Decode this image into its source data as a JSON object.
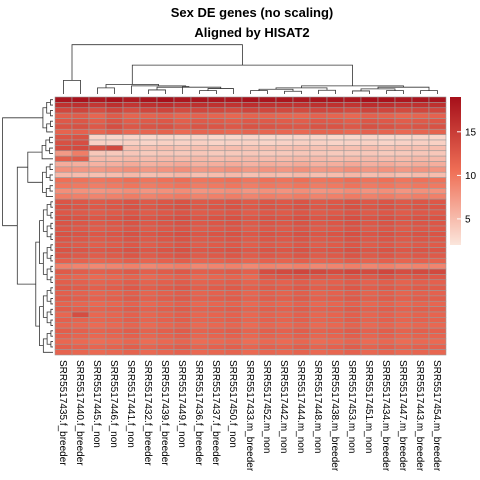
{
  "chart_data": {
    "type": "heatmap",
    "title": "Sex DE genes (no scaling)",
    "subtitle": "Aligned by HISAT2",
    "columns": [
      "SRR5517435.f_breeder",
      "SRR5517440.f_breeder",
      "SRR5517445.f_non",
      "SRR5517446.f_non",
      "SRR5517441.f_non",
      "SRR5517432.f_breeder",
      "SRR5517439.f_breeder",
      "SRR5517449.f_non",
      "SRR5517436.f_breeder",
      "SRR5517437.f_breeder",
      "SRR5517450.f_non",
      "SRR5517433.m_breeder",
      "SRR5517452.m_non",
      "SRR5517442.m_non",
      "SRR5517444.m_non",
      "SRR5517448.m_non",
      "SRR5517438.m_breeder",
      "SRR5517453.m_non",
      "SRR5517451.m_non",
      "SRR5517434.m_breeder",
      "SRR5517447.m_breeder",
      "SRR5517443.m_breeder",
      "SRR5517454.m_breeder"
    ],
    "n_rows": 48,
    "color_scale": {
      "low": "#fbe6dc",
      "mid": "#ef6f56",
      "high": "#a50f1a",
      "min": 2,
      "max": 19
    },
    "legend": {
      "ticks": [
        5,
        10,
        15
      ],
      "placement": "right"
    },
    "row_dendrogram": "left",
    "column_dendrogram": "top",
    "values": [
      [
        18.5,
        18.7,
        18.2,
        18.8,
        18.1,
        18.6,
        18.9,
        18.3,
        18.6,
        18.4,
        18.2,
        18.8,
        18.5,
        18.4,
        18.3,
        18.6,
        18.5,
        18.2,
        18.9,
        18.7,
        18.3,
        18.5,
        18.6
      ],
      [
        16.0,
        16.2,
        15.5,
        16.2,
        15.6,
        16.1,
        16.3,
        15.8,
        16.1,
        16.0,
        15.8,
        16.3,
        16.0,
        15.9,
        15.8,
        16.1,
        16.0,
        15.7,
        16.4,
        16.2,
        15.8,
        16.0,
        16.1
      ],
      [
        14.0,
        14.2,
        13.4,
        14.2,
        13.5,
        14.0,
        14.2,
        13.6,
        14.0,
        13.9,
        13.6,
        14.2,
        14.0,
        13.8,
        13.7,
        14.1,
        14.0,
        13.6,
        14.3,
        14.1,
        13.7,
        14.0,
        14.1
      ],
      [
        12.0,
        12.2,
        11.4,
        12.3,
        11.5,
        11.6,
        11.8,
        11.3,
        11.7,
        11.5,
        11.3,
        11.6,
        11.5,
        11.3,
        11.2,
        11.7,
        11.5,
        11.2,
        11.8,
        11.6,
        11.2,
        11.5,
        11.7
      ],
      [
        12.5,
        12.7,
        12.0,
        12.9,
        12.1,
        12.4,
        12.6,
        11.9,
        12.4,
        12.3,
        12.0,
        12.5,
        12.4,
        12.2,
        12.1,
        12.5,
        12.4,
        12.0,
        12.7,
        12.5,
        12.1,
        12.4,
        12.6
      ],
      [
        13.0,
        13.2,
        12.5,
        13.4,
        12.6,
        12.9,
        13.1,
        12.4,
        12.9,
        12.8,
        12.5,
        13.0,
        12.9,
        12.7,
        12.6,
        13.0,
        12.9,
        12.5,
        13.2,
        13.0,
        12.6,
        12.9,
        13.1
      ],
      [
        11.5,
        11.7,
        11.3,
        12.0,
        11.1,
        11.4,
        11.6,
        10.9,
        11.4,
        11.3,
        11.0,
        11.5,
        11.4,
        11.2,
        11.1,
        11.5,
        11.4,
        11.0,
        11.7,
        11.5,
        11.1,
        11.4,
        11.6
      ],
      [
        12.8,
        13.0,
        3.2,
        3.1,
        3.3,
        3.0,
        3.2,
        3.1,
        3.3,
        3.0,
        3.1,
        3.2,
        3.0,
        3.1,
        3.3,
        3.2,
        3.0,
        3.1,
        3.2,
        3.0,
        3.1,
        3.3,
        3.2
      ],
      [
        13.2,
        13.4,
        3.5,
        3.4,
        3.6,
        3.3,
        3.5,
        3.4,
        3.6,
        3.3,
        3.4,
        3.5,
        3.3,
        3.4,
        3.6,
        3.5,
        3.3,
        3.4,
        3.5,
        3.3,
        3.4,
        3.6,
        3.5
      ],
      [
        13.6,
        13.8,
        12.9,
        13.9,
        4.8,
        4.7,
        4.9,
        4.6,
        4.8,
        4.7,
        4.9,
        4.6,
        4.8,
        4.7,
        4.9,
        4.6,
        4.8,
        4.7,
        4.9,
        4.6,
        4.8,
        4.7,
        4.9
      ],
      [
        7.5,
        9.5,
        4.2,
        4.1,
        4.3,
        4.0,
        4.2,
        4.1,
        4.3,
        4.0,
        4.1,
        4.2,
        4.0,
        4.1,
        4.3,
        4.2,
        4.0,
        4.1,
        4.2,
        4.0,
        4.1,
        4.3,
        4.2
      ],
      [
        12.0,
        12.2,
        5.2,
        5.1,
        5.3,
        5.0,
        5.2,
        5.1,
        5.3,
        5.0,
        5.1,
        5.2,
        5.0,
        5.1,
        5.3,
        5.2,
        5.0,
        5.1,
        5.2,
        5.0,
        5.1,
        5.3,
        5.2
      ],
      [
        6.2,
        6.0,
        5.7,
        5.9,
        6.3,
        5.8,
        6.1,
        6.4,
        5.8,
        6.0,
        6.2,
        5.7,
        6.1,
        5.9,
        6.3,
        5.8,
        6.0,
        6.4,
        5.9,
        6.2,
        5.8,
        6.1,
        6.0
      ],
      [
        8.0,
        7.7,
        7.5,
        7.8,
        8.2,
        7.6,
        7.9,
        8.3,
        7.6,
        7.8,
        8.1,
        7.5,
        7.9,
        7.7,
        8.2,
        7.6,
        7.8,
        8.3,
        7.7,
        8.0,
        7.6,
        7.9,
        7.8
      ],
      [
        5.2,
        5.0,
        4.7,
        4.9,
        5.3,
        4.8,
        5.1,
        5.4,
        4.8,
        5.0,
        5.2,
        4.7,
        5.1,
        4.9,
        5.3,
        4.8,
        5.0,
        5.4,
        4.9,
        5.2,
        4.8,
        5.1,
        5.0
      ],
      [
        10.5,
        10.3,
        10.0,
        10.2,
        10.6,
        10.1,
        10.4,
        10.7,
        10.1,
        10.3,
        10.5,
        10.0,
        10.4,
        10.2,
        10.6,
        10.1,
        10.3,
        10.7,
        10.2,
        10.5,
        10.1,
        10.4,
        10.3
      ],
      [
        10.0,
        9.8,
        9.5,
        9.7,
        10.1,
        9.6,
        9.9,
        10.2,
        9.6,
        9.8,
        10.0,
        9.5,
        9.9,
        9.7,
        10.1,
        9.6,
        9.8,
        10.2,
        9.7,
        10.0,
        9.6,
        9.9,
        9.8
      ],
      [
        8.2,
        8.0,
        7.7,
        7.9,
        8.3,
        7.8,
        8.1,
        8.4,
        7.8,
        8.0,
        8.2,
        7.7,
        8.1,
        7.9,
        8.3,
        7.8,
        8.0,
        8.4,
        7.9,
        8.2,
        7.8,
        8.1,
        8.0
      ],
      [
        9.5,
        9.3,
        9.0,
        9.2,
        9.6,
        9.1,
        9.4,
        9.7,
        9.1,
        9.3,
        9.5,
        9.0,
        9.4,
        9.2,
        9.6,
        9.1,
        9.3,
        9.7,
        9.2,
        9.5,
        9.1,
        9.4,
        9.3
      ],
      [
        12.8,
        12.6,
        12.3,
        12.5,
        12.9,
        12.4,
        12.7,
        13.0,
        12.4,
        12.6,
        12.8,
        12.3,
        12.7,
        12.5,
        12.9,
        12.4,
        12.6,
        13.0,
        12.5,
        12.8,
        12.4,
        12.7,
        12.6
      ],
      [
        13.0,
        12.8,
        12.5,
        12.7,
        13.1,
        12.6,
        12.9,
        13.2,
        12.6,
        12.8,
        13.0,
        12.5,
        12.9,
        12.7,
        13.1,
        12.6,
        12.8,
        13.2,
        12.7,
        13.0,
        12.6,
        12.9,
        12.8
      ],
      [
        12.6,
        12.4,
        12.1,
        12.3,
        12.7,
        12.2,
        12.5,
        12.8,
        12.2,
        12.4,
        12.6,
        12.1,
        12.5,
        12.3,
        12.7,
        12.2,
        12.4,
        12.8,
        12.3,
        12.6,
        12.2,
        12.5,
        12.4
      ],
      [
        13.2,
        13.0,
        12.7,
        12.9,
        13.3,
        12.8,
        13.1,
        13.4,
        12.8,
        13.0,
        13.2,
        12.7,
        13.1,
        12.9,
        13.3,
        12.8,
        13.0,
        13.4,
        12.9,
        13.2,
        12.8,
        13.1,
        13.0
      ],
      [
        12.9,
        12.7,
        12.4,
        12.6,
        13.0,
        12.5,
        12.8,
        13.1,
        12.5,
        12.7,
        12.9,
        12.4,
        12.8,
        12.6,
        13.0,
        12.5,
        12.7,
        13.1,
        12.6,
        12.9,
        12.5,
        12.8,
        12.7
      ],
      [
        12.7,
        12.5,
        12.2,
        12.4,
        12.8,
        12.3,
        12.6,
        12.9,
        12.3,
        12.5,
        12.7,
        12.2,
        12.6,
        12.4,
        12.8,
        12.3,
        12.5,
        12.9,
        12.4,
        12.7,
        12.3,
        12.6,
        12.5
      ],
      [
        13.1,
        12.9,
        12.6,
        12.8,
        13.2,
        12.7,
        13.0,
        13.3,
        12.7,
        12.9,
        13.1,
        12.6,
        13.0,
        12.8,
        13.2,
        12.7,
        12.9,
        13.3,
        12.8,
        13.1,
        12.7,
        13.0,
        12.9
      ],
      [
        12.8,
        12.6,
        12.3,
        12.5,
        12.9,
        12.4,
        12.7,
        13.0,
        12.4,
        12.6,
        12.8,
        12.3,
        12.7,
        12.5,
        12.9,
        12.4,
        12.6,
        13.0,
        12.5,
        12.8,
        12.4,
        12.7,
        12.6
      ],
      [
        12.5,
        12.3,
        12.0,
        12.2,
        12.6,
        12.1,
        12.4,
        12.7,
        12.1,
        12.3,
        12.5,
        12.0,
        12.4,
        12.2,
        12.6,
        12.1,
        12.3,
        12.7,
        12.2,
        12.5,
        12.1,
        12.4,
        12.3
      ],
      [
        13.0,
        12.8,
        12.5,
        12.7,
        13.1,
        12.6,
        12.9,
        13.2,
        12.6,
        12.8,
        13.0,
        12.5,
        12.9,
        12.7,
        13.1,
        12.6,
        12.8,
        13.2,
        12.7,
        13.0,
        12.6,
        12.9,
        12.8
      ],
      [
        12.6,
        12.4,
        12.1,
        12.3,
        12.7,
        12.2,
        12.5,
        12.8,
        12.2,
        12.4,
        12.6,
        12.1,
        12.5,
        12.3,
        12.7,
        12.2,
        12.4,
        12.8,
        12.3,
        12.6,
        12.2,
        12.5,
        12.4
      ],
      [
        11.8,
        11.6,
        11.3,
        11.5,
        11.9,
        11.4,
        11.7,
        12.0,
        11.4,
        11.6,
        11.8,
        11.3,
        11.7,
        11.5,
        11.9,
        11.4,
        11.6,
        12.0,
        11.5,
        11.8,
        11.4,
        11.7,
        11.6
      ],
      [
        9.2,
        9.0,
        8.7,
        8.9,
        9.3,
        8.8,
        9.1,
        9.4,
        8.8,
        9.0,
        9.2,
        8.7,
        9.1,
        8.9,
        9.3,
        8.8,
        9.0,
        9.4,
        8.9,
        9.2,
        8.8,
        9.1,
        9.0
      ],
      [
        12.3,
        12.1,
        11.8,
        12.0,
        12.4,
        11.9,
        12.2,
        12.5,
        11.9,
        12.1,
        12.3,
        11.8,
        13.5,
        13.8,
        14.2,
        13.9,
        13.6,
        14.0,
        13.7,
        14.1,
        13.5,
        13.8,
        13.9
      ],
      [
        11.5,
        11.3,
        11.0,
        11.2,
        11.6,
        11.1,
        11.4,
        11.7,
        11.1,
        11.3,
        11.5,
        11.0,
        12.4,
        12.6,
        12.8,
        12.5,
        12.3,
        12.7,
        12.4,
        12.9,
        12.3,
        12.6,
        12.5
      ],
      [
        12.0,
        11.8,
        11.5,
        11.7,
        12.1,
        11.6,
        11.9,
        12.2,
        11.6,
        11.8,
        12.0,
        11.5,
        11.9,
        11.7,
        12.1,
        11.6,
        11.8,
        12.2,
        11.7,
        12.0,
        11.6,
        11.9,
        11.8
      ],
      [
        12.4,
        12.2,
        11.9,
        12.1,
        12.5,
        12.0,
        12.3,
        12.6,
        12.0,
        12.2,
        12.4,
        11.9,
        12.3,
        12.1,
        12.5,
        12.0,
        12.2,
        12.6,
        12.1,
        12.4,
        12.0,
        12.3,
        12.2
      ],
      [
        11.9,
        11.7,
        11.4,
        11.6,
        12.0,
        11.5,
        11.8,
        12.1,
        11.5,
        11.7,
        11.9,
        11.4,
        11.8,
        11.6,
        12.0,
        11.5,
        11.7,
        12.1,
        11.6,
        11.9,
        11.5,
        11.8,
        11.7
      ],
      [
        12.2,
        12.0,
        11.7,
        11.9,
        12.3,
        11.8,
        12.1,
        12.4,
        11.8,
        12.0,
        12.2,
        11.7,
        12.1,
        11.9,
        12.3,
        11.8,
        12.0,
        12.4,
        11.9,
        12.2,
        11.8,
        12.1,
        12.0
      ],
      [
        11.6,
        11.4,
        11.1,
        11.3,
        11.7,
        11.2,
        11.5,
        11.8,
        11.2,
        11.4,
        11.6,
        11.1,
        11.5,
        11.3,
        11.7,
        11.2,
        11.4,
        11.8,
        11.3,
        11.6,
        11.2,
        11.5,
        11.4
      ],
      [
        12.1,
        11.9,
        11.6,
        11.8,
        12.2,
        11.7,
        12.0,
        12.3,
        11.7,
        11.9,
        12.1,
        11.6,
        12.0,
        11.8,
        12.2,
        11.7,
        11.9,
        12.3,
        11.8,
        12.1,
        11.7,
        12.0,
        11.9
      ],
      [
        11.3,
        13.5,
        11.2,
        11.4,
        11.8,
        11.3,
        11.6,
        11.9,
        11.3,
        11.5,
        11.7,
        11.2,
        11.6,
        11.4,
        11.8,
        11.3,
        11.5,
        11.9,
        11.4,
        11.7,
        11.3,
        11.6,
        11.5
      ],
      [
        11.8,
        11.6,
        11.3,
        11.5,
        11.9,
        11.4,
        11.7,
        12.0,
        11.4,
        11.6,
        11.8,
        11.3,
        11.7,
        11.5,
        11.9,
        11.4,
        11.6,
        12.0,
        11.5,
        11.8,
        11.4,
        11.7,
        11.6
      ],
      [
        11.4,
        11.2,
        10.9,
        11.1,
        11.5,
        11.0,
        11.3,
        11.6,
        11.0,
        11.2,
        11.4,
        10.9,
        11.3,
        11.1,
        11.5,
        11.0,
        11.2,
        11.6,
        11.1,
        11.4,
        11.0,
        11.3,
        11.2
      ],
      [
        12.0,
        11.8,
        11.5,
        11.7,
        12.1,
        11.6,
        11.9,
        12.2,
        11.6,
        11.8,
        12.0,
        11.5,
        11.9,
        11.7,
        12.1,
        11.6,
        11.8,
        12.2,
        11.7,
        12.0,
        11.6,
        11.9,
        11.8
      ],
      [
        11.7,
        11.5,
        11.2,
        11.4,
        11.8,
        11.3,
        11.6,
        11.9,
        11.3,
        11.5,
        11.7,
        11.2,
        11.6,
        11.4,
        11.8,
        11.3,
        11.5,
        11.9,
        11.4,
        11.7,
        11.3,
        11.6,
        11.5
      ],
      [
        11.2,
        11.0,
        10.7,
        10.9,
        11.3,
        10.8,
        11.1,
        11.4,
        10.8,
        11.0,
        11.2,
        10.7,
        11.1,
        10.9,
        11.3,
        10.8,
        11.0,
        11.4,
        10.9,
        11.2,
        10.8,
        11.1,
        11.0
      ],
      [
        11.9,
        11.7,
        11.4,
        11.6,
        12.0,
        11.5,
        11.8,
        12.1,
        11.5,
        11.7,
        11.9,
        11.4,
        11.8,
        11.6,
        12.0,
        11.5,
        11.7,
        12.1,
        11.6,
        11.9,
        11.5,
        11.8,
        11.7
      ],
      [
        11.5,
        11.3,
        11.0,
        11.2,
        11.6,
        11.1,
        11.4,
        11.7,
        11.1,
        11.3,
        11.5,
        11.0,
        11.4,
        11.2,
        11.6,
        11.1,
        11.3,
        11.7,
        11.2,
        11.5,
        11.1,
        11.4,
        11.3
      ]
    ]
  }
}
